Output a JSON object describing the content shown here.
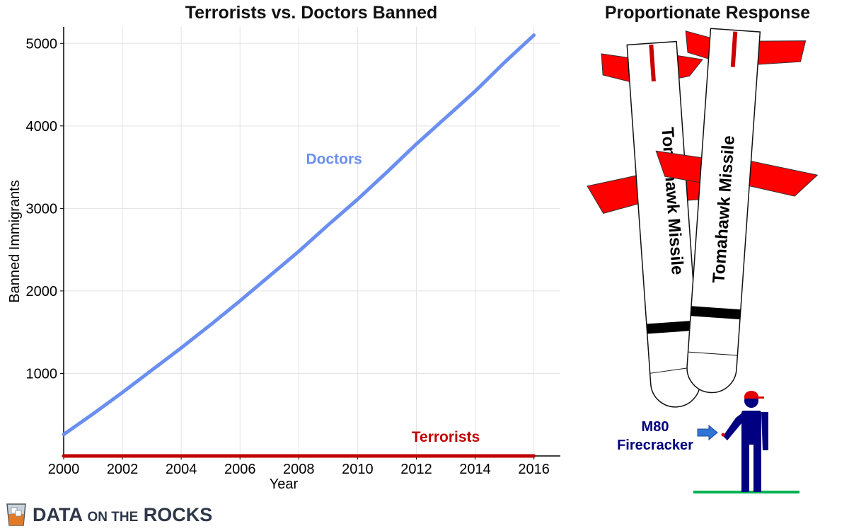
{
  "chart_data": {
    "type": "line",
    "title": "Terrorists vs. Doctors Banned",
    "xlabel": "Year",
    "ylabel": "Banned Immigrants",
    "xlim": [
      2000,
      2016.9
    ],
    "ylim": [
      0,
      5200
    ],
    "x_ticks": [
      2000,
      2002,
      2004,
      2006,
      2008,
      2010,
      2012,
      2014,
      2016
    ],
    "y_ticks": [
      1000,
      2000,
      3000,
      4000,
      5000
    ],
    "grid": true,
    "series": [
      {
        "name": "Doctors",
        "color": "#6b8ff0",
        "x": [
          2000,
          2001,
          2002,
          2003,
          2004,
          2005,
          2006,
          2007,
          2008,
          2009,
          2010,
          2011,
          2012,
          2013,
          2014,
          2015,
          2016
        ],
        "y": [
          260,
          510,
          770,
          1040,
          1310,
          1590,
          1880,
          2180,
          2480,
          2800,
          3110,
          3440,
          3780,
          4100,
          4420,
          4770,
          5100
        ]
      },
      {
        "name": "Terrorists",
        "color": "#c00000",
        "x": [
          2000,
          2002,
          2004,
          2006,
          2008,
          2010,
          2012,
          2014,
          2016
        ],
        "y": [
          0,
          0,
          0,
          0,
          0,
          0,
          0,
          0,
          0
        ]
      }
    ]
  },
  "illustration": {
    "title": "Proportionate Response",
    "missile_label": "Tomahawk Missile",
    "firecracker_label_1": "M80",
    "firecracker_label_2": "Firecracker"
  },
  "branding": {
    "logo_main": "DATA",
    "logo_small": "ON THE",
    "logo_end": "ROCKS"
  }
}
